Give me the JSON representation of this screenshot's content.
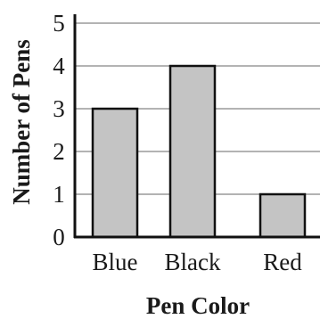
{
  "chart_data": {
    "type": "bar",
    "categories": [
      "Blue",
      "Black",
      "Red"
    ],
    "values": [
      3,
      4,
      1
    ],
    "title": "",
    "xlabel": "Pen Color",
    "ylabel": "Number of Pens",
    "ylim": [
      0,
      5
    ],
    "yticks": [
      "0",
      "1",
      "2",
      "3",
      "4",
      "5"
    ],
    "grid": true,
    "legend": "none",
    "colors": {
      "bar_fill": "#c4c4c4",
      "bar_stroke": "#111111",
      "axis": "#111111",
      "grid": "#9a9a9a",
      "text": "#1a1a1a"
    }
  }
}
